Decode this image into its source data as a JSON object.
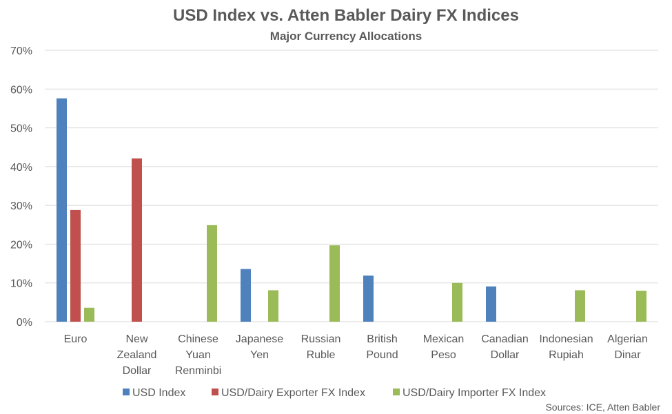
{
  "chart_data": {
    "type": "bar",
    "title": "USD Index vs. Atten Babler Dairy FX Indices",
    "subtitle": "Major Currency Allocations",
    "categories": [
      [
        "Euro"
      ],
      [
        "New",
        "Zealand",
        "Dollar"
      ],
      [
        "Chinese",
        "Yuan",
        "Renminbi"
      ],
      [
        "Japanese",
        "Yen"
      ],
      [
        "Russian",
        "Ruble"
      ],
      [
        "British",
        "Pound"
      ],
      [
        "Mexican",
        "Peso"
      ],
      [
        "Canadian",
        "Dollar"
      ],
      [
        "Indonesian",
        "Rupiah"
      ],
      [
        "Algerian",
        "Dinar"
      ]
    ],
    "series": [
      {
        "name": "USD Index",
        "color": "#4f81bd",
        "values": [
          57.6,
          0,
          0,
          13.6,
          0,
          11.9,
          0,
          9.1,
          0,
          0
        ]
      },
      {
        "name": "USD/Dairy Exporter FX Index",
        "color": "#c0504d",
        "values": [
          28.8,
          42.1,
          0,
          0,
          0,
          0,
          0,
          0,
          0,
          0
        ]
      },
      {
        "name": "USD/Dairy Importer FX Index",
        "color": "#9bbb59",
        "values": [
          3.6,
          0,
          24.9,
          8.1,
          19.7,
          0,
          10.0,
          0,
          8.1,
          8.0
        ]
      }
    ],
    "y_ticks": [
      "0%",
      "10%",
      "20%",
      "30%",
      "40%",
      "50%",
      "60%",
      "70%"
    ],
    "ylim": [
      0,
      70
    ],
    "grid": true,
    "legend_position": "bottom",
    "source": "Sources: ICE, Atten Babler"
  }
}
